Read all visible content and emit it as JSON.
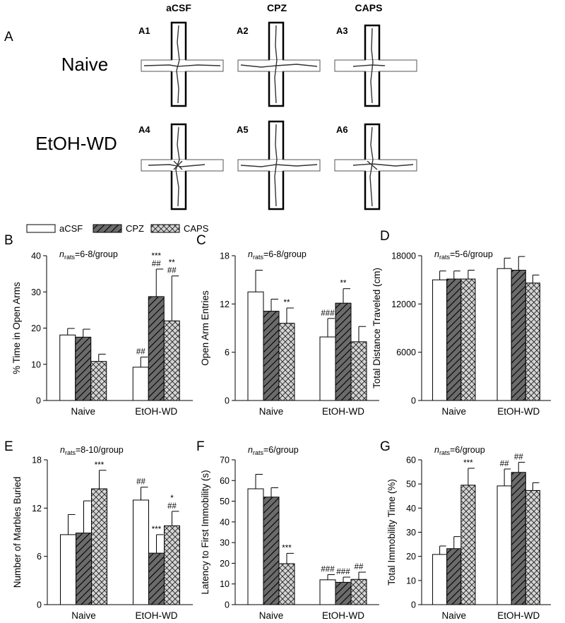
{
  "panel_a": {
    "letter": "A",
    "column_headers": [
      "aCSF",
      "CPZ",
      "CAPS"
    ],
    "row_labels": [
      "Naive",
      "EtOH-WD"
    ],
    "maze_labels": [
      "A1",
      "A2",
      "A3",
      "A4",
      "A5",
      "A6"
    ]
  },
  "legend": [
    {
      "name": "aCSF",
      "pattern": "open"
    },
    {
      "name": "CPZ",
      "pattern": "diagonal-hatch"
    },
    {
      "name": "CAPS",
      "pattern": "cross-hatch"
    }
  ],
  "colors": {
    "open_fill": "#ffffff",
    "cpz_fill": "#6b6b6b",
    "caps_fill": "#d4d4d4",
    "stroke": "#000000"
  },
  "chart_data": [
    {
      "panel": "B",
      "type": "bar",
      "ylabel": "% Time in Open Arms",
      "ylim": [
        0,
        40
      ],
      "yticks": [
        0,
        10,
        20,
        30,
        40
      ],
      "n_label": {
        "var": "n",
        "sub": "rats",
        "text": "=6-8/group"
      },
      "categories": [
        "Naive",
        "EtOH-WD"
      ],
      "series": [
        {
          "name": "aCSF",
          "values": [
            18.1,
            9.2
          ],
          "errors": [
            1.8,
            2.8
          ],
          "marks": [
            "",
            "##"
          ]
        },
        {
          "name": "CPZ",
          "values": [
            17.5,
            28.7
          ],
          "errors": [
            2.2,
            7.6
          ],
          "marks": [
            "",
            "***\n##"
          ]
        },
        {
          "name": "CAPS",
          "values": [
            10.8,
            22.0
          ],
          "errors": [
            2.0,
            12.4
          ],
          "marks": [
            "",
            "**\n##"
          ]
        }
      ]
    },
    {
      "panel": "C",
      "type": "bar",
      "ylabel": "Open Arm Entries",
      "ylim": [
        0,
        18
      ],
      "yticks": [
        0,
        6,
        12,
        18
      ],
      "n_label": {
        "var": "n",
        "sub": "rats",
        "text": "=6-8/group"
      },
      "categories": [
        "Naive",
        "EtOH-WD"
      ],
      "series": [
        {
          "name": "aCSF",
          "values": [
            13.5,
            7.9
          ],
          "errors": [
            2.7,
            2.3
          ],
          "marks": [
            "",
            "###"
          ]
        },
        {
          "name": "CPZ",
          "values": [
            11.1,
            12.1
          ],
          "errors": [
            1.5,
            1.8
          ],
          "marks": [
            "",
            "**"
          ]
        },
        {
          "name": "CAPS",
          "values": [
            9.6,
            7.3
          ],
          "errors": [
            1.9,
            1.9
          ],
          "marks": [
            "**",
            ""
          ]
        }
      ]
    },
    {
      "panel": "D",
      "type": "bar",
      "ylabel": "Total Distance Traveled (cm)",
      "ylim": [
        0,
        18000
      ],
      "yticks": [
        0,
        6000,
        12000,
        18000
      ],
      "n_label": {
        "var": "n",
        "sub": "rats",
        "text": "=5-6/group"
      },
      "categories": [
        "Naive",
        "EtOH-WD"
      ],
      "series": [
        {
          "name": "aCSF",
          "values": [
            15000,
            16400
          ],
          "errors": [
            1100,
            1300
          ],
          "marks": [
            "",
            ""
          ]
        },
        {
          "name": "CPZ",
          "values": [
            15100,
            16200
          ],
          "errors": [
            1000,
            1700
          ],
          "marks": [
            "",
            ""
          ]
        },
        {
          "name": "CAPS",
          "values": [
            15100,
            14600
          ],
          "errors": [
            1100,
            1000
          ],
          "marks": [
            "",
            ""
          ]
        }
      ]
    },
    {
      "panel": "E",
      "type": "bar",
      "ylabel": "Number of Marbles Buried",
      "ylim": [
        0,
        18
      ],
      "yticks": [
        0,
        6,
        12,
        18
      ],
      "n_label": {
        "var": "n",
        "sub": "rats",
        "text": "=8-10/group"
      },
      "categories": [
        "Naive",
        "EtOH-WD"
      ],
      "series": [
        {
          "name": "aCSF",
          "values": [
            8.7,
            13.0
          ],
          "errors": [
            2.5,
            1.6
          ],
          "marks": [
            "",
            "##"
          ]
        },
        {
          "name": "CPZ",
          "values": [
            8.9,
            6.4
          ],
          "errors": [
            4.0,
            2.3
          ],
          "marks": [
            "",
            "***"
          ]
        },
        {
          "name": "CAPS",
          "values": [
            14.4,
            9.8
          ],
          "errors": [
            2.3,
            1.8
          ],
          "marks": [
            "***",
            "*\n##"
          ]
        }
      ]
    },
    {
      "panel": "F",
      "type": "bar",
      "ylabel": "Latency to First Immobility (s)",
      "ylim": [
        0,
        70
      ],
      "yticks": [
        0,
        10,
        20,
        30,
        40,
        50,
        60,
        70
      ],
      "n_label": {
        "var": "n",
        "sub": "rats",
        "text": "=6/group"
      },
      "categories": [
        "Naive",
        "EtOH-WD"
      ],
      "series": [
        {
          "name": "aCSF",
          "values": [
            56,
            12
          ],
          "errors": [
            7,
            2.5
          ],
          "marks": [
            "",
            "###"
          ]
        },
        {
          "name": "CPZ",
          "values": [
            52,
            10.8
          ],
          "errors": [
            4.5,
            2.5
          ],
          "marks": [
            "",
            "###"
          ]
        },
        {
          "name": "CAPS",
          "values": [
            19.8,
            12.2
          ],
          "errors": [
            5,
            3.5
          ],
          "marks": [
            "***",
            "##"
          ]
        }
      ]
    },
    {
      "panel": "G",
      "type": "bar",
      "ylabel": "Total Immobility Time (%)",
      "ylim": [
        0,
        60
      ],
      "yticks": [
        0,
        10,
        20,
        30,
        40,
        50,
        60
      ],
      "n_label": {
        "var": "n",
        "sub": "rats",
        "text": "=6/group"
      },
      "categories": [
        "Naive",
        "EtOH-WD"
      ],
      "series": [
        {
          "name": "aCSF",
          "values": [
            20.8,
            49.2
          ],
          "errors": [
            3.5,
            7
          ],
          "marks": [
            "",
            "##"
          ]
        },
        {
          "name": "CPZ",
          "values": [
            23.2,
            54.8
          ],
          "errors": [
            5,
            4.2
          ],
          "marks": [
            "",
            "##"
          ]
        },
        {
          "name": "CAPS",
          "values": [
            49.5,
            47.3
          ],
          "errors": [
            7,
            3.2
          ],
          "marks": [
            "***",
            ""
          ]
        }
      ]
    }
  ]
}
